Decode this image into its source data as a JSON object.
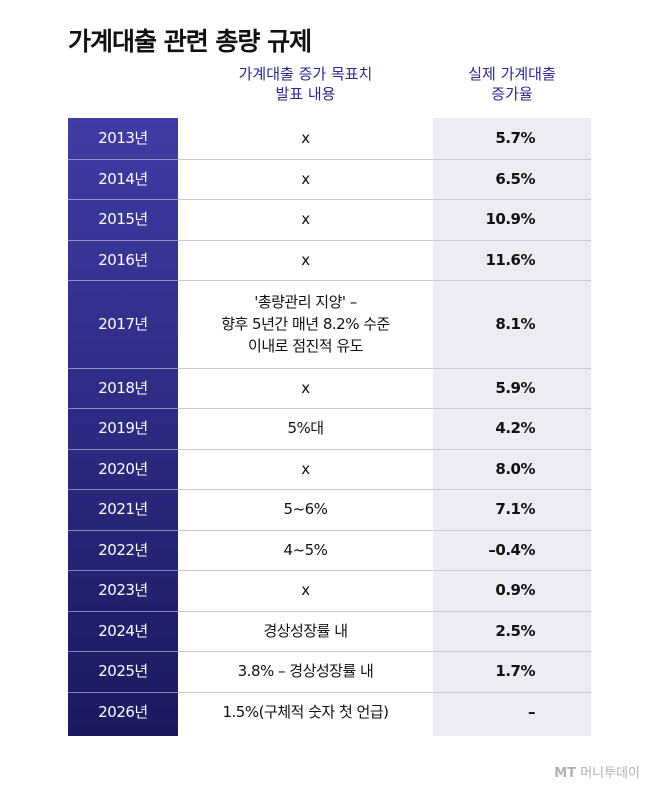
{
  "title": "가계대출 관련 총량 규제",
  "headers": [
    "가계대출 증가 목표치\n발표 내용",
    "실제 가계대출\n증가율"
  ],
  "rows": [
    {
      "year": "2013년",
      "target": "x",
      "actual": "5.7%"
    },
    {
      "year": "2014년",
      "target": "x",
      "actual": "6.5%"
    },
    {
      "year": "2015년",
      "target": "x",
      "actual": "10.9%"
    },
    {
      "year": "2016년",
      "target": "x",
      "actual": "11.6%"
    },
    {
      "year": "2017년",
      "target": "'총량관리 지양' –\n향후 5년간 매년 8.2% 수준\n이내로 점진적 유도",
      "actual": "8.1%"
    },
    {
      "year": "2018년",
      "target": "x",
      "actual": "5.9%"
    },
    {
      "year": "2019년",
      "target": "5%대",
      "actual": "4.2%"
    },
    {
      "year": "2020년",
      "target": "x",
      "actual": "8.0%"
    },
    {
      "year": "2021년",
      "target": "5~6%",
      "actual": "7.1%"
    },
    {
      "year": "2022년",
      "target": "4~5%",
      "actual": "–0.4%"
    },
    {
      "year": "2023년",
      "target": "x",
      "actual": "0.9%"
    },
    {
      "year": "2024년",
      "target": "경상성장률 내",
      "actual": "2.5%"
    },
    {
      "year": "2025년",
      "target": "3.8% – 경상성장률 내",
      "actual": "1.7%"
    },
    {
      "year": "2026년",
      "target": "1.5%(구체적 숫자 첫 언급)",
      "actual": "–"
    }
  ],
  "logo": {
    "mark": "MT",
    "name": "머니투데이"
  }
}
